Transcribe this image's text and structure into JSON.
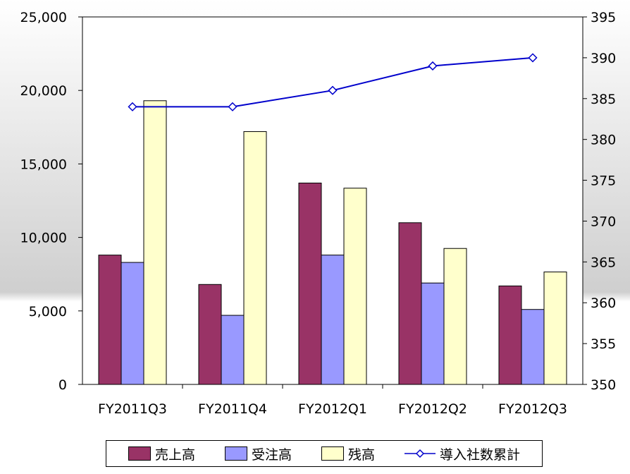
{
  "chart_data": {
    "type": "bar",
    "categories": [
      "FY2011Q3",
      "FY2011Q4",
      "FY2012Q1",
      "FY2012Q2",
      "FY2012Q3"
    ],
    "series": [
      {
        "name": "売上高",
        "type": "bar",
        "axis": "left",
        "color": "#993366",
        "values": [
          8800,
          6800,
          13700,
          11000,
          6700
        ]
      },
      {
        "name": "受注高",
        "type": "bar",
        "axis": "left",
        "color": "#9999FF",
        "values": [
          8300,
          4700,
          8800,
          6900,
          5100
        ]
      },
      {
        "name": "残高",
        "type": "bar",
        "axis": "left",
        "color": "#FFFFCC",
        "values": [
          19300,
          17200,
          13350,
          9250,
          7650
        ]
      },
      {
        "name": "導入社数累計",
        "type": "line",
        "axis": "right",
        "color": "#0000CC",
        "values": [
          384,
          384,
          386,
          389,
          390
        ]
      }
    ],
    "y_left": {
      "min": 0,
      "max": 25000,
      "ticks": [
        "0",
        "5,000",
        "10,000",
        "15,000",
        "20,000",
        "25,000"
      ]
    },
    "y_right": {
      "min": 350,
      "max": 395,
      "ticks": [
        "350",
        "355",
        "360",
        "365",
        "370",
        "375",
        "380",
        "385",
        "390",
        "395"
      ]
    },
    "grid": false,
    "legend_position": "bottom"
  }
}
